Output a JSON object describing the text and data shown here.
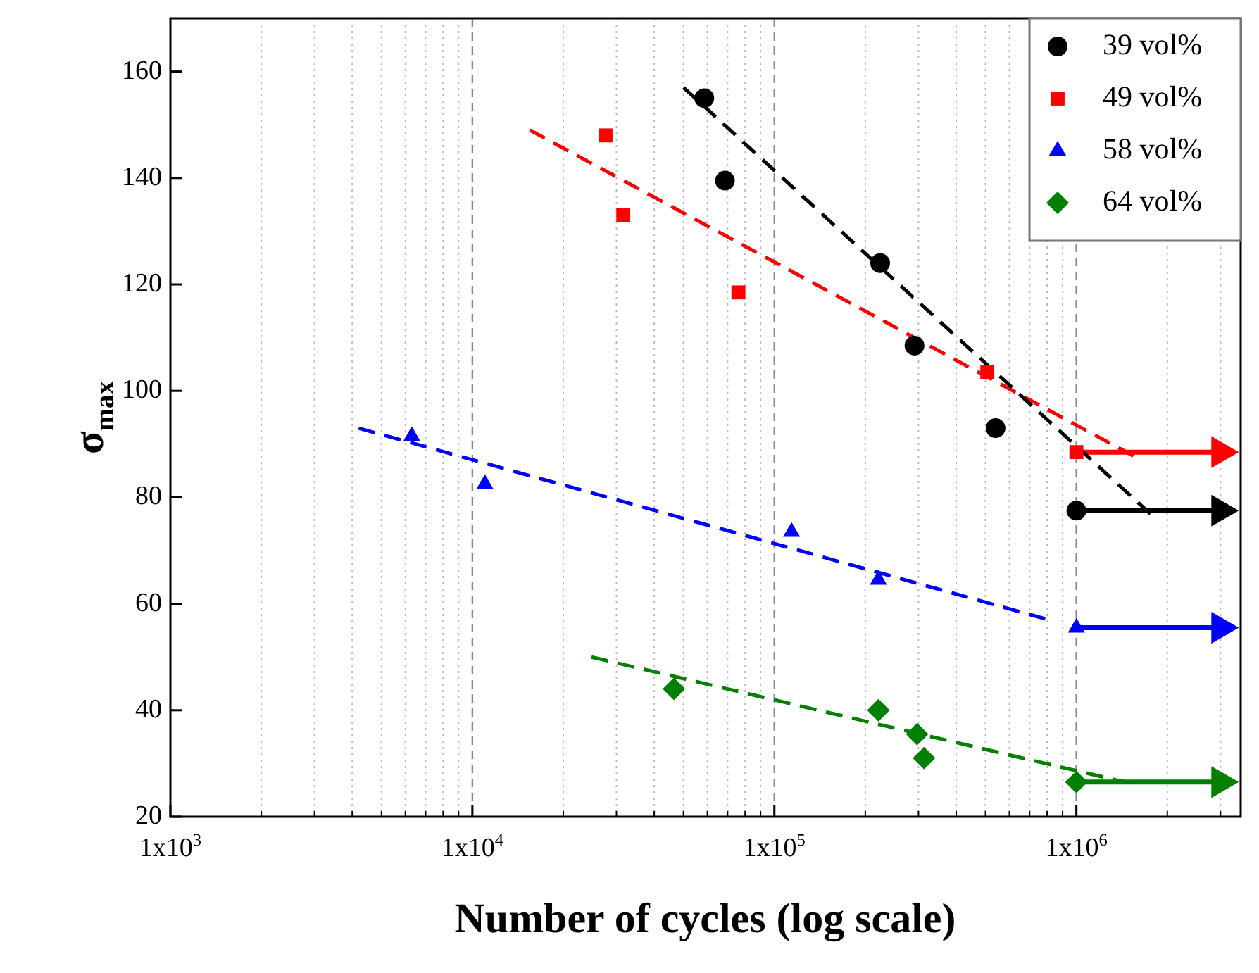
{
  "chart_data": {
    "type": "scatter",
    "xlabel": "Number of cycles (log scale)",
    "ylabel": "σ$_{max}$",
    "log": "x",
    "grid": "x",
    "legend": "top right",
    "xlim": [
      1000,
      3500000
    ],
    "xticks": [
      {
        "value": 1000,
        "label": "1x10$^{3}$"
      },
      {
        "value": 10000,
        "label": "1x10$^{4}$"
      },
      {
        "value": 100000,
        "label": "1x10$^{5}$"
      },
      {
        "value": 1000000,
        "label": "1x10$^{6}$"
      }
    ],
    "ylim": [
      20,
      170
    ],
    "yticks": [
      20,
      40,
      60,
      80,
      100,
      120,
      140,
      160
    ],
    "series": [
      {
        "name": "39 vol%",
        "marker": "circle",
        "color": "#000000",
        "x": [
          58600,
          68600,
          224000,
          291000,
          540000,
          1000000
        ],
        "values": [
          155,
          139.5,
          124,
          108.5,
          93,
          77.5
        ]
      },
      {
        "name": "49 vol%",
        "marker": "square",
        "color": "#ff0000",
        "x": [
          27600,
          31600,
          76000,
          507000,
          1000000
        ],
        "values": [
          148,
          133,
          118.5,
          103.5,
          88.5
        ]
      },
      {
        "name": "58 vol%",
        "marker": "triangle",
        "color": "#0000ff",
        "x": [
          6300,
          11000,
          114000,
          221000,
          1000000
        ],
        "values": [
          91.5,
          82.5,
          73.5,
          64.5,
          55.5
        ]
      },
      {
        "name": "64 vol%",
        "marker": "diamond",
        "color": "#008000",
        "x": [
          46500,
          221000,
          297000,
          313000,
          1000000
        ],
        "values": [
          44,
          40,
          35.5,
          31,
          26.5
        ]
      },
      {
        "type": "line",
        "line_style": "dashed",
        "marker": "none",
        "color": "#000000",
        "x": [
          50000,
          1830000
        ],
        "values": [
          157,
          76
        ]
      },
      {
        "type": "line",
        "line_style": "dashed",
        "marker": "none",
        "color": "#ff0000",
        "x": [
          15500,
          1640000
        ],
        "values": [
          149,
          87
        ]
      },
      {
        "type": "line",
        "line_style": "dashed",
        "marker": "none",
        "color": "#0000ff",
        "x": [
          4200,
          810000
        ],
        "values": [
          93,
          57
        ]
      },
      {
        "type": "line",
        "line_style": "dashed",
        "marker": "none",
        "color": "#008000",
        "x": [
          24800,
          1450000
        ],
        "values": [
          50,
          26.5
        ]
      },
      {
        "type": "line",
        "line_style": "solid",
        "marker": "triangle",
        "color": "#ff0000",
        "x": [
          1000000,
          3000000
        ],
        "values": [
          88.5,
          88.5
        ]
      },
      {
        "type": "line",
        "line_style": "solid",
        "marker": "triangle",
        "color": "#000000",
        "x": [
          1000000,
          3000000
        ],
        "values": [
          77.5,
          77.5
        ]
      },
      {
        "type": "line",
        "line_style": "solid",
        "marker": "triangle",
        "color": "#0000ff",
        "x": [
          1000000,
          3000000
        ],
        "values": [
          55.5,
          55.5
        ]
      },
      {
        "type": "line",
        "line_style": "solid",
        "marker": "triangle",
        "color": "#008000",
        "x": [
          1000000,
          3000000
        ],
        "values": [
          26.5,
          26.5
        ]
      }
    ]
  }
}
